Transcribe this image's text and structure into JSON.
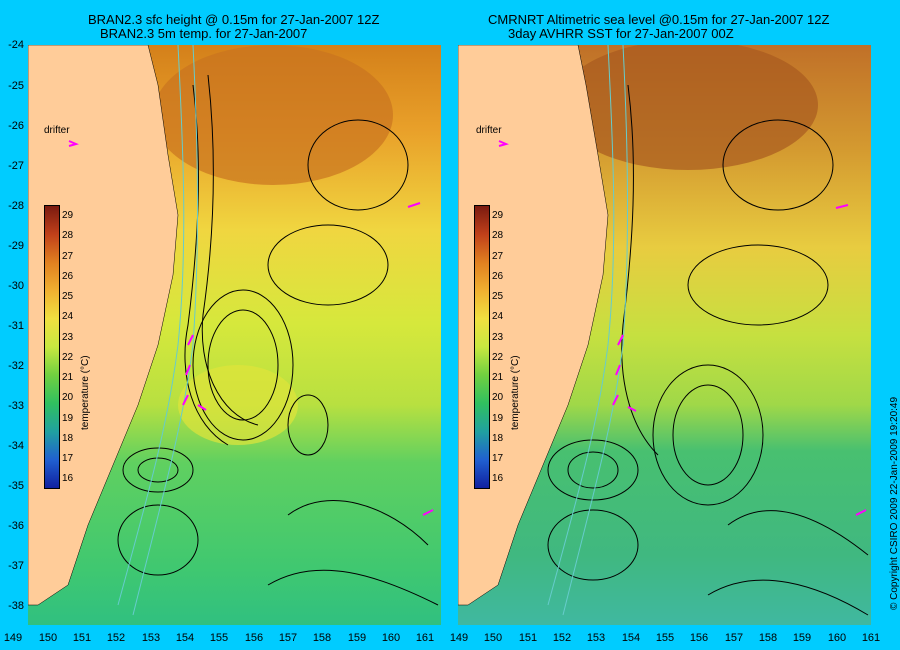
{
  "titles": {
    "left_line1": "BRAN2.3 sfc height @ 0.15m for 27-Jan-2007 12Z",
    "left_line2": "BRAN2.3 5m temp. for 27-Jan-2007",
    "right_line1": "CMRNRT Altimetric sea level  @0.15m  for 27-Jan-2007 12Z",
    "right_line2": "3day AVHRR SST for 27-Jan-2007 00Z"
  },
  "y_labels": [
    "-24",
    "-25",
    "-26",
    "-27",
    "-28",
    "-29",
    "-30",
    "-31",
    "-32",
    "-33",
    "-34",
    "-35",
    "-36",
    "-37",
    "-38"
  ],
  "x_labels_left": [
    "149",
    "150",
    "151",
    "152",
    "153",
    "154",
    "155",
    "156",
    "157",
    "158",
    "159",
    "160",
    "161"
  ],
  "x_labels_right": [
    "149",
    "150",
    "151",
    "152",
    "153",
    "154",
    "155",
    "156",
    "157",
    "158",
    "159",
    "160",
    "161"
  ],
  "colorbar": {
    "ticks": [
      "29",
      "28",
      "27",
      "26",
      "25",
      "24",
      "23",
      "22",
      "21",
      "20",
      "19",
      "18",
      "17",
      "16"
    ],
    "title": "temperature (°C)"
  },
  "drifter_label": "drifter",
  "copyright": "© Copyright CSIRO 2009    22-Jan-2009 19:20:49",
  "colors": {
    "background": "#00ccff",
    "land": "#ffcc99",
    "contour": "#000000",
    "bathymetry": "#66cccc",
    "drifter": "#ff00ff"
  }
}
